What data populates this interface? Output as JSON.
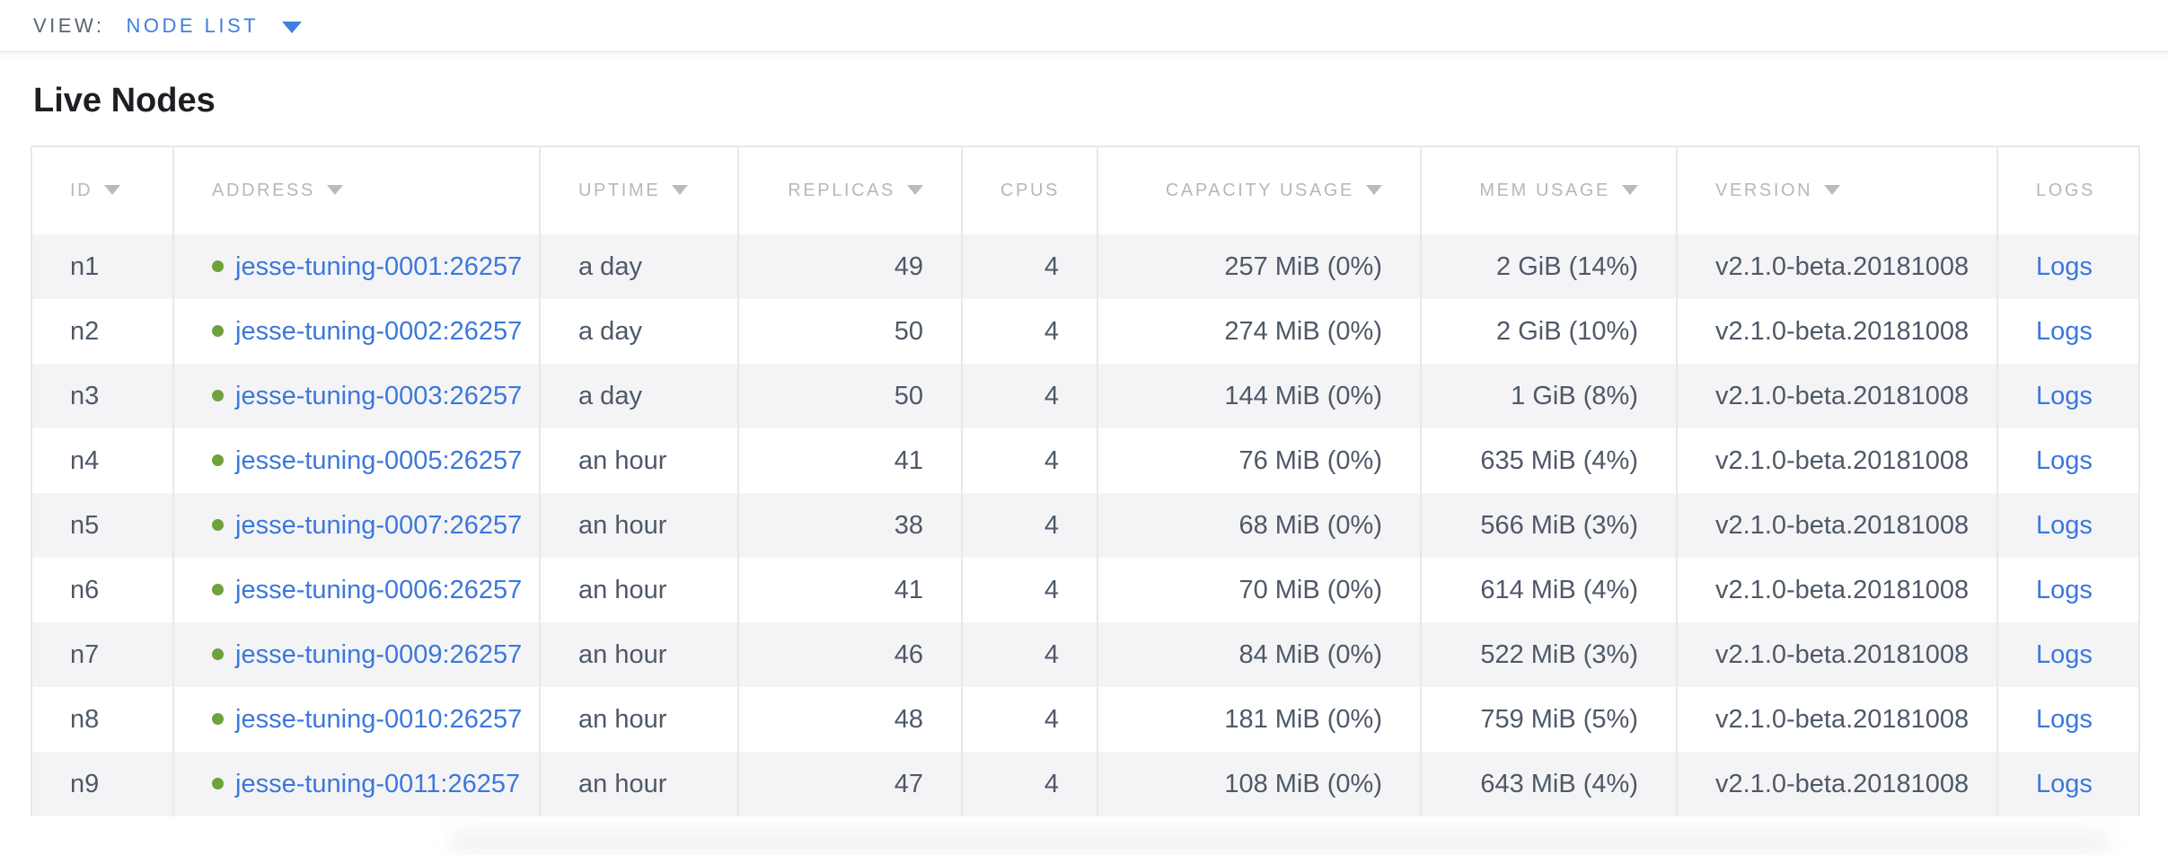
{
  "view_bar": {
    "label": "VIEW:",
    "selected": "NODE LIST"
  },
  "page": {
    "title": "Live Nodes"
  },
  "table": {
    "columns": [
      {
        "key": "id",
        "label": "ID",
        "sortable": true,
        "align": "left"
      },
      {
        "key": "address",
        "label": "ADDRESS",
        "sortable": true,
        "align": "left"
      },
      {
        "key": "uptime",
        "label": "UPTIME",
        "sortable": true,
        "align": "left"
      },
      {
        "key": "replicas",
        "label": "REPLICAS",
        "sortable": true,
        "align": "right"
      },
      {
        "key": "cpus",
        "label": "CPUS",
        "sortable": false,
        "align": "right"
      },
      {
        "key": "capacity",
        "label": "CAPACITY USAGE",
        "sortable": true,
        "align": "right"
      },
      {
        "key": "mem",
        "label": "MEM USAGE",
        "sortable": true,
        "align": "right"
      },
      {
        "key": "version",
        "label": "VERSION",
        "sortable": true,
        "align": "left"
      },
      {
        "key": "logs",
        "label": "LOGS",
        "sortable": false,
        "align": "left"
      }
    ],
    "rows": [
      {
        "id": "n1",
        "address": "jesse-tuning-0001:26257",
        "status": "healthy",
        "uptime": "a day",
        "replicas": "49",
        "cpus": "4",
        "capacity": "257 MiB (0%)",
        "mem": "2 GiB (14%)",
        "version": "v2.1.0-beta.20181008",
        "logs": "Logs"
      },
      {
        "id": "n2",
        "address": "jesse-tuning-0002:26257",
        "status": "healthy",
        "uptime": "a day",
        "replicas": "50",
        "cpus": "4",
        "capacity": "274 MiB (0%)",
        "mem": "2 GiB (10%)",
        "version": "v2.1.0-beta.20181008",
        "logs": "Logs"
      },
      {
        "id": "n3",
        "address": "jesse-tuning-0003:26257",
        "status": "healthy",
        "uptime": "a day",
        "replicas": "50",
        "cpus": "4",
        "capacity": "144 MiB (0%)",
        "mem": "1 GiB (8%)",
        "version": "v2.1.0-beta.20181008",
        "logs": "Logs"
      },
      {
        "id": "n4",
        "address": "jesse-tuning-0005:26257",
        "status": "healthy",
        "uptime": "an hour",
        "replicas": "41",
        "cpus": "4",
        "capacity": "76 MiB (0%)",
        "mem": "635 MiB (4%)",
        "version": "v2.1.0-beta.20181008",
        "logs": "Logs"
      },
      {
        "id": "n5",
        "address": "jesse-tuning-0007:26257",
        "status": "healthy",
        "uptime": "an hour",
        "replicas": "38",
        "cpus": "4",
        "capacity": "68 MiB (0%)",
        "mem": "566 MiB (3%)",
        "version": "v2.1.0-beta.20181008",
        "logs": "Logs"
      },
      {
        "id": "n6",
        "address": "jesse-tuning-0006:26257",
        "status": "healthy",
        "uptime": "an hour",
        "replicas": "41",
        "cpus": "4",
        "capacity": "70 MiB (0%)",
        "mem": "614 MiB (4%)",
        "version": "v2.1.0-beta.20181008",
        "logs": "Logs"
      },
      {
        "id": "n7",
        "address": "jesse-tuning-0009:26257",
        "status": "healthy",
        "uptime": "an hour",
        "replicas": "46",
        "cpus": "4",
        "capacity": "84 MiB (0%)",
        "mem": "522 MiB (3%)",
        "version": "v2.1.0-beta.20181008",
        "logs": "Logs"
      },
      {
        "id": "n8",
        "address": "jesse-tuning-0010:26257",
        "status": "healthy",
        "uptime": "an hour",
        "replicas": "48",
        "cpus": "4",
        "capacity": "181 MiB (0%)",
        "mem": "759 MiB (5%)",
        "version": "v2.1.0-beta.20181008",
        "logs": "Logs"
      },
      {
        "id": "n9",
        "address": "jesse-tuning-0011:26257",
        "status": "healthy",
        "uptime": "an hour",
        "replicas": "47",
        "cpus": "4",
        "capacity": "108 MiB (0%)",
        "mem": "643 MiB (4%)",
        "version": "v2.1.0-beta.20181008",
        "logs": "Logs"
      }
    ]
  },
  "colors": {
    "accent_blue": "#3f7ee0",
    "link_blue": "#3b78dc",
    "healthy_dot_green": "#6ea23d"
  }
}
